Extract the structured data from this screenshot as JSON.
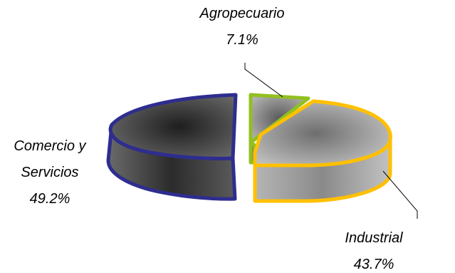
{
  "chart_data": {
    "type": "pie",
    "style": "3d-exploded",
    "slices": [
      {
        "label_lines": [
          "Agropecuario"
        ],
        "value": 7.1,
        "value_label": "7.1%",
        "color": "#92c01f",
        "fill": "#8c8c8c"
      },
      {
        "label_lines": [
          "Industrial"
        ],
        "value": 43.7,
        "value_label": "43.7%",
        "color": "#ffc000",
        "fill": "#a6a6a6"
      },
      {
        "label_lines": [
          "Comercio y",
          "Servicios"
        ],
        "value": 49.2,
        "value_label": "49.2%",
        "color": "#2e2d8f",
        "fill": "#4a4a4a"
      }
    ]
  }
}
